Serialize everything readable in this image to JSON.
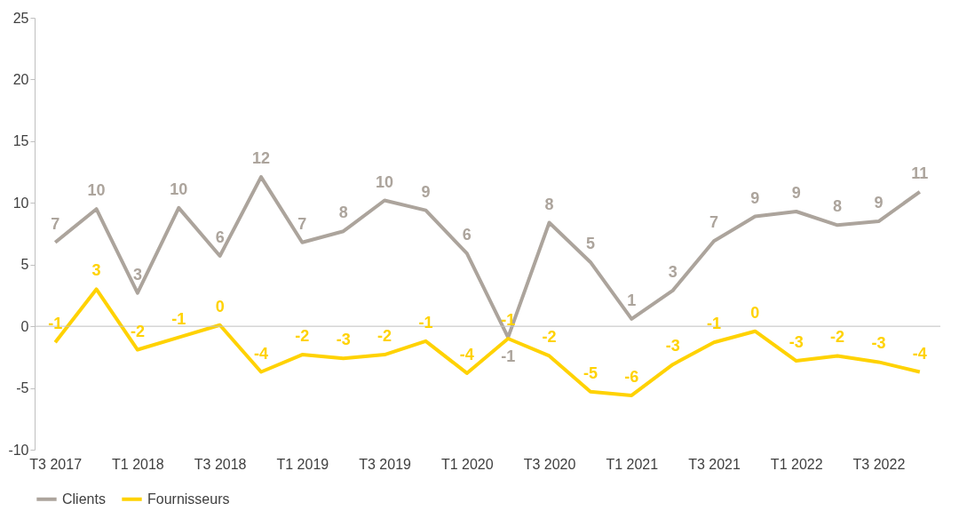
{
  "chart_data": {
    "type": "line",
    "categories": [
      "T3 2017",
      null,
      "T1 2018",
      null,
      "T3 2018",
      null,
      "T1 2019",
      null,
      "T3 2019",
      null,
      "T1 2020",
      null,
      "T3 2020",
      null,
      "T1 2021",
      null,
      "T3 2021",
      null,
      "T1 2022",
      null,
      "T3 2022",
      null
    ],
    "series": [
      {
        "name": "Clients",
        "color": "#aca49c",
        "values": [
          6.8,
          9.5,
          2.7,
          9.6,
          5.7,
          12.1,
          6.8,
          7.7,
          10.2,
          9.4,
          5.9,
          -0.9,
          8.4,
          5.2,
          0.6,
          2.9,
          6.9,
          8.9,
          9.3,
          8.2,
          8.5,
          10.9
        ],
        "value_labels": [
          "7",
          "10",
          "3",
          "10",
          "6",
          "12",
          "7",
          "8",
          "10",
          "9",
          "6",
          "-1",
          "8",
          "5",
          "1",
          "3",
          "7",
          "9",
          "9",
          "8",
          "9",
          "11"
        ]
      },
      {
        "name": "Fournisseurs",
        "color": "#ffd200",
        "values": [
          -1.3,
          3.0,
          -1.9,
          -0.9,
          0.1,
          -3.7,
          -2.3,
          -2.6,
          -2.3,
          -1.2,
          -3.8,
          -1.0,
          -2.4,
          -5.3,
          -5.6,
          -3.1,
          -1.3,
          -0.4,
          -2.8,
          -2.4,
          -2.9,
          -3.7
        ],
        "value_labels": [
          "-1",
          "3",
          "-2",
          "-1",
          "0",
          "-4",
          "-2",
          "-3",
          "-2",
          "-1",
          "-4",
          "-1",
          "-2",
          "-5",
          "-6",
          "-3",
          "-1",
          "0",
          "-3",
          "-2",
          "-3",
          "-4"
        ]
      }
    ],
    "ylim": [
      -10,
      25
    ],
    "yticks": [
      -10,
      -5,
      0,
      5,
      10,
      15,
      20,
      25
    ],
    "grid": false,
    "legend": "bottom",
    "marker": "none",
    "line_style": "solid",
    "ref_lines": [
      {
        "axis": "y",
        "value": 0,
        "label": null,
        "color": "#bfbfbf"
      }
    ]
  }
}
